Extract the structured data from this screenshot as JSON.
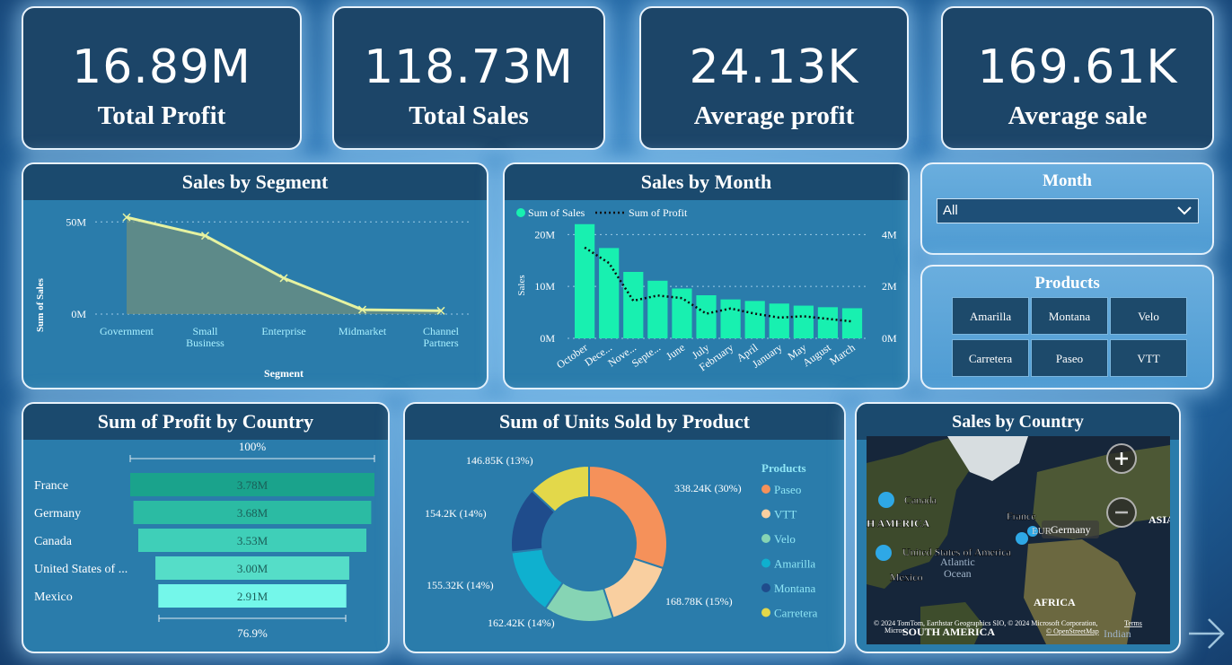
{
  "kpis": [
    {
      "value": "16.89M",
      "label": "Total Profit"
    },
    {
      "value": "118.73M",
      "label": "Total Sales"
    },
    {
      "value": "24.13K",
      "label": "Average profit"
    },
    {
      "value": "169.61K",
      "label": "Average sale"
    }
  ],
  "colors": {
    "accent_green": "#18f0b0",
    "dark_panel": "#1c4568",
    "header": "#1b4a6e"
  },
  "segment_chart": {
    "title": "Sales by Segment",
    "chart_data": {
      "type": "area",
      "categories": [
        "Government",
        "Small Business",
        "Enterprise",
        "Midmarket",
        "Channel Partners"
      ],
      "category_lines": [
        [
          "Government"
        ],
        [
          "Small",
          "Business"
        ],
        [
          "Enterprise"
        ],
        [
          "Midmarket"
        ],
        [
          "Channel",
          "Partners"
        ]
      ],
      "values": [
        52.5,
        42.5,
        19.5,
        2.4,
        1.8
      ],
      "ylim": [
        0,
        55
      ],
      "yticks": [
        {
          "v": 0,
          "label": "0M"
        },
        {
          "v": 50,
          "label": "50M"
        }
      ],
      "xlabel": "Segment",
      "ylabel": "Sum of Sales"
    }
  },
  "month_chart": {
    "title": "Sales by Month",
    "legend": {
      "bar": "Sum of  Sales",
      "line": "Sum of Profit"
    },
    "chart_data": {
      "type": "bar",
      "categories": [
        "October",
        "Dece...",
        "Nove...",
        "Septe...",
        "June",
        "July",
        "February",
        "April",
        "January",
        "May",
        "August",
        "March"
      ],
      "series": [
        {
          "name": "Sum of  Sales",
          "values": [
            22.0,
            17.4,
            12.8,
            11.1,
            9.6,
            8.3,
            7.5,
            7.2,
            6.7,
            6.3,
            6.0,
            5.8
          ]
        },
        {
          "name": "Sum of Profit",
          "values": [
            3.5,
            2.9,
            1.45,
            1.65,
            1.55,
            0.95,
            1.15,
            0.95,
            0.8,
            0.85,
            0.75,
            0.65
          ]
        }
      ],
      "ylim": [
        0,
        23
      ],
      "y2lim": [
        0,
        4.6
      ],
      "yticks": [
        {
          "v": 0,
          "label": "0M"
        },
        {
          "v": 10,
          "label": "10M"
        },
        {
          "v": 20,
          "label": "20M"
        }
      ],
      "y2ticks": [
        {
          "v": 0,
          "label": "0M"
        },
        {
          "v": 2,
          "label": "2M"
        },
        {
          "v": 4,
          "label": "4M"
        }
      ],
      "ylabel": "Sales"
    }
  },
  "month_slicer": {
    "title": "Month",
    "selected": "All"
  },
  "product_slicer": {
    "title": "Products",
    "items": [
      "Amarilla",
      "Montana",
      "Velo",
      "Carretera",
      "Paseo",
      "VTT"
    ]
  },
  "country_chart": {
    "title": "Sum of Profit by Country",
    "chart_data": {
      "type": "bar",
      "categories": [
        "France",
        "Germany",
        "Canada",
        "United States of ...",
        "Mexico"
      ],
      "values": [
        3.78,
        3.68,
        3.53,
        3.0,
        2.91
      ],
      "value_labels": [
        "3.78M",
        "3.68M",
        "3.53M",
        "3.00M",
        "2.91M"
      ],
      "top_label": "100%",
      "bottom_label": "76.9%",
      "colors": [
        "#1aa38c",
        "#2bbba3",
        "#3fcfb8",
        "#55ddc8",
        "#74f7ea"
      ]
    }
  },
  "units_chart": {
    "title": "Sum of Units Sold by Product",
    "legend_title": "Products",
    "chart_data": {
      "type": "pie",
      "slices": [
        {
          "name": "Paseo",
          "value": 338.24,
          "label": "338.24K (30%)",
          "color": "#f5915a"
        },
        {
          "name": "VTT",
          "value": 168.78,
          "label": "168.78K (15%)",
          "color": "#f9cfa0"
        },
        {
          "name": "Velo",
          "value": 162.42,
          "label": "162.42K (14%)",
          "color": "#86d4b4"
        },
        {
          "name": "Amarilla",
          "value": 155.32,
          "label": "155.32K (14%)",
          "color": "#0fb0cf"
        },
        {
          "name": "Montana",
          "value": 154.2,
          "label": "154.2K (14%)",
          "color": "#1f4c8c"
        },
        {
          "name": "Carretera",
          "value": 146.85,
          "label": "146.85K (13%)",
          "color": "#e3d84a"
        }
      ]
    }
  },
  "map": {
    "title": "Sales by Country",
    "labels": {
      "canada": "Canada",
      "north_america": "H AMERICA",
      "usa": "United States of America",
      "atlantic": "Atlantic",
      "ocean": "Ocean",
      "mexico": "Mexico",
      "france": "France",
      "germany": "Germany",
      "eur": "EUR",
      "asia": "ASIA",
      "africa": "AFRICA",
      "south_america": "SOUTH AMERICA",
      "indian": "Indian",
      "attribution": "© 2024 TomTom, Earthstar Geographics SIO, © 2024 Microsoft Corporation,",
      "osm": "© OpenStreetMap",
      "terms": "Terms",
      "microsoft": "Micros"
    }
  }
}
